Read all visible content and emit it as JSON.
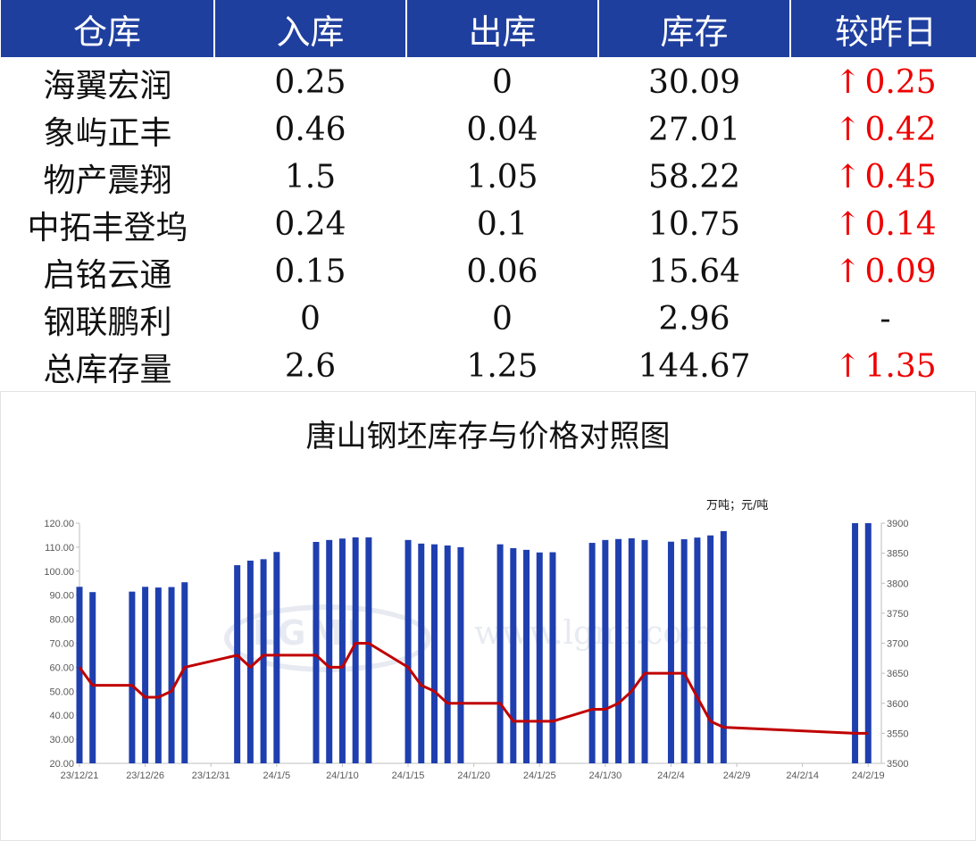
{
  "table": {
    "headers": [
      "仓库",
      "入库",
      "出库",
      "库存",
      "较昨日"
    ],
    "rows": [
      {
        "name": "海翼宏润",
        "in": "0.25",
        "out": "0",
        "stock": "30.09",
        "change": "0.25",
        "dir": "up"
      },
      {
        "name": "象屿正丰",
        "in": "0.46",
        "out": "0.04",
        "stock": "27.01",
        "change": "0.42",
        "dir": "up"
      },
      {
        "name": "物产震翔",
        "in": "1.5",
        "out": "1.05",
        "stock": "58.22",
        "change": "0.45",
        "dir": "up"
      },
      {
        "name": "中拓丰登坞",
        "in": "0.24",
        "out": "0.1",
        "stock": "10.75",
        "change": "0.14",
        "dir": "up"
      },
      {
        "name": "启铭云通",
        "in": "0.15",
        "out": "0.06",
        "stock": "15.64",
        "change": "0.09",
        "dir": "up"
      },
      {
        "name": "钢联鹏利",
        "in": "0",
        "out": "0",
        "stock": "2.96",
        "change": "-",
        "dir": "flat"
      },
      {
        "name": "总库存量",
        "in": "2.6",
        "out": "1.25",
        "stock": "144.67",
        "change": "1.35",
        "dir": "up"
      }
    ],
    "up_arrow": "↑"
  },
  "watermark": {
    "logo": "LGMI",
    "url": "www.lgmi.com"
  },
  "colors": {
    "header_bg": "#1f3f9f",
    "bar": "#1f3faf",
    "line": "#c00000",
    "up": "#ee0000"
  },
  "chart_data": {
    "type": "bar+line",
    "title": "唐山钢坯库存与价格对照图",
    "unit_label": "万吨；元/吨",
    "x_start": "2023-12-21",
    "x_end": "2024-02-20",
    "x_ticks": [
      {
        "date": "2023-12-21",
        "label": "23/12/21"
      },
      {
        "date": "2023-12-26",
        "label": "23/12/26"
      },
      {
        "date": "2023-12-31",
        "label": "23/12/31"
      },
      {
        "date": "2024-01-05",
        "label": "24/1/5"
      },
      {
        "date": "2024-01-10",
        "label": "24/1/10"
      },
      {
        "date": "2024-01-15",
        "label": "24/1/15"
      },
      {
        "date": "2024-01-20",
        "label": "24/1/20"
      },
      {
        "date": "2024-01-25",
        "label": "24/1/25"
      },
      {
        "date": "2024-01-30",
        "label": "24/1/30"
      },
      {
        "date": "2024-02-04",
        "label": "24/2/4"
      },
      {
        "date": "2024-02-09",
        "label": "24/2/9"
      },
      {
        "date": "2024-02-14",
        "label": "24/2/14"
      },
      {
        "date": "2024-02-19",
        "label": "24/2/19"
      }
    ],
    "y_left": {
      "min": 20,
      "max": 120,
      "step": 10,
      "labels": [
        "20.00",
        "30.00",
        "40.00",
        "50.00",
        "60.00",
        "70.00",
        "80.00",
        "90.00",
        "100.00",
        "110.00",
        "120.00"
      ]
    },
    "y_right": {
      "min": 3500,
      "max": 3900,
      "step": 50,
      "labels": [
        "3500",
        "3550",
        "3600",
        "3650",
        "3700",
        "3750",
        "3800",
        "3850",
        "3900"
      ]
    },
    "series": [
      {
        "kind": "bar",
        "axis": "left",
        "points": [
          {
            "date": "2023-12-21",
            "value": 93.5
          },
          {
            "date": "2023-12-22",
            "value": 91.3
          },
          {
            "date": "2023-12-25",
            "value": 91.5
          },
          {
            "date": "2023-12-26",
            "value": 93.5
          },
          {
            "date": "2023-12-27",
            "value": 93.2
          },
          {
            "date": "2023-12-28",
            "value": 93.4
          },
          {
            "date": "2023-12-29",
            "value": 95.4
          },
          {
            "date": "2024-01-02",
            "value": 102.5
          },
          {
            "date": "2024-01-03",
            "value": 104.4
          },
          {
            "date": "2024-01-04",
            "value": 105.0
          },
          {
            "date": "2024-01-05",
            "value": 108.0
          },
          {
            "date": "2024-01-08",
            "value": 112.2
          },
          {
            "date": "2024-01-09",
            "value": 113.0
          },
          {
            "date": "2024-01-10",
            "value": 113.6
          },
          {
            "date": "2024-01-11",
            "value": 114.1
          },
          {
            "date": "2024-01-12",
            "value": 114.1
          },
          {
            "date": "2024-01-15",
            "value": 113.0
          },
          {
            "date": "2024-01-16",
            "value": 111.5
          },
          {
            "date": "2024-01-17",
            "value": 111.2
          },
          {
            "date": "2024-01-18",
            "value": 110.7
          },
          {
            "date": "2024-01-19",
            "value": 110.0
          },
          {
            "date": "2024-01-22",
            "value": 111.2
          },
          {
            "date": "2024-01-23",
            "value": 109.6
          },
          {
            "date": "2024-01-24",
            "value": 108.9
          },
          {
            "date": "2024-01-25",
            "value": 107.8
          },
          {
            "date": "2024-01-26",
            "value": 107.9
          },
          {
            "date": "2024-01-29",
            "value": 111.8
          },
          {
            "date": "2024-01-30",
            "value": 113.0
          },
          {
            "date": "2024-01-31",
            "value": 113.4
          },
          {
            "date": "2024-02-01",
            "value": 113.7
          },
          {
            "date": "2024-02-02",
            "value": 113.0
          },
          {
            "date": "2024-02-04",
            "value": 112.3
          },
          {
            "date": "2024-02-05",
            "value": 113.3
          },
          {
            "date": "2024-02-06",
            "value": 114.0
          },
          {
            "date": "2024-02-07",
            "value": 114.9
          },
          {
            "date": "2024-02-08",
            "value": 116.7
          },
          {
            "date": "2024-02-18",
            "value": 120.0
          },
          {
            "date": "2024-02-19",
            "value": 120.0
          }
        ]
      },
      {
        "kind": "line",
        "axis": "right",
        "points": [
          {
            "date": "2023-12-21",
            "value": 3660
          },
          {
            "date": "2023-12-22",
            "value": 3630
          },
          {
            "date": "2023-12-25",
            "value": 3630
          },
          {
            "date": "2023-12-26",
            "value": 3610
          },
          {
            "date": "2023-12-27",
            "value": 3610
          },
          {
            "date": "2023-12-28",
            "value": 3620
          },
          {
            "date": "2023-12-29",
            "value": 3660
          },
          {
            "date": "2024-01-02",
            "value": 3680
          },
          {
            "date": "2024-01-03",
            "value": 3660
          },
          {
            "date": "2024-01-04",
            "value": 3680
          },
          {
            "date": "2024-01-05",
            "value": 3680
          },
          {
            "date": "2024-01-08",
            "value": 3680
          },
          {
            "date": "2024-01-09",
            "value": 3660
          },
          {
            "date": "2024-01-10",
            "value": 3660
          },
          {
            "date": "2024-01-11",
            "value": 3700
          },
          {
            "date": "2024-01-12",
            "value": 3700
          },
          {
            "date": "2024-01-15",
            "value": 3660
          },
          {
            "date": "2024-01-16",
            "value": 3630
          },
          {
            "date": "2024-01-17",
            "value": 3620
          },
          {
            "date": "2024-01-18",
            "value": 3600
          },
          {
            "date": "2024-01-19",
            "value": 3600
          },
          {
            "date": "2024-01-22",
            "value": 3600
          },
          {
            "date": "2024-01-23",
            "value": 3570
          },
          {
            "date": "2024-01-24",
            "value": 3570
          },
          {
            "date": "2024-01-25",
            "value": 3570
          },
          {
            "date": "2024-01-26",
            "value": 3570
          },
          {
            "date": "2024-01-29",
            "value": 3590
          },
          {
            "date": "2024-01-30",
            "value": 3590
          },
          {
            "date": "2024-01-31",
            "value": 3600
          },
          {
            "date": "2024-02-01",
            "value": 3620
          },
          {
            "date": "2024-02-02",
            "value": 3650
          },
          {
            "date": "2024-02-04",
            "value": 3650
          },
          {
            "date": "2024-02-05",
            "value": 3650
          },
          {
            "date": "2024-02-06",
            "value": 3610
          },
          {
            "date": "2024-02-07",
            "value": 3570
          },
          {
            "date": "2024-02-08",
            "value": 3560
          },
          {
            "date": "2024-02-18",
            "value": 3550
          },
          {
            "date": "2024-02-19",
            "value": 3550
          }
        ]
      }
    ]
  }
}
